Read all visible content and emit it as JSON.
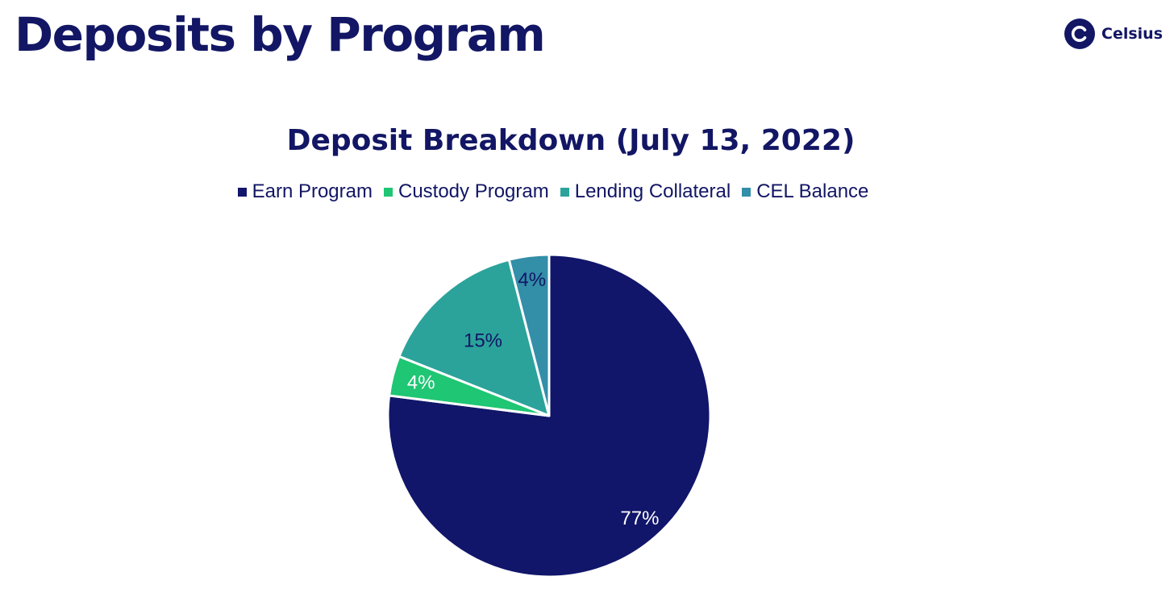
{
  "header": {
    "title": "Deposits by Program"
  },
  "brand": {
    "name": "Celsius",
    "icon": "celsius-logo-icon"
  },
  "colors": {
    "text": "#121664",
    "earn": "#11166a",
    "custody": "#1fc673",
    "lending": "#2ba39b",
    "cel": "#338ea8"
  },
  "chart_data": {
    "type": "pie",
    "title": "Deposit Breakdown (July 13, 2022)",
    "legend_position": "top",
    "categories": [
      "Earn Program",
      "Custody Program",
      "Lending Collateral",
      "CEL Balance"
    ],
    "values": [
      77,
      4,
      15,
      4
    ],
    "labels": [
      "77%",
      "4%",
      "15%",
      "4%"
    ],
    "colors": [
      "#11166a",
      "#1fc673",
      "#2ba39b",
      "#338ea8"
    ],
    "label_colors": [
      "#ffffff",
      "#ffffff",
      "#121664",
      "#121664"
    ],
    "start_angle": "12 o'clock",
    "direction": "clockwise"
  }
}
